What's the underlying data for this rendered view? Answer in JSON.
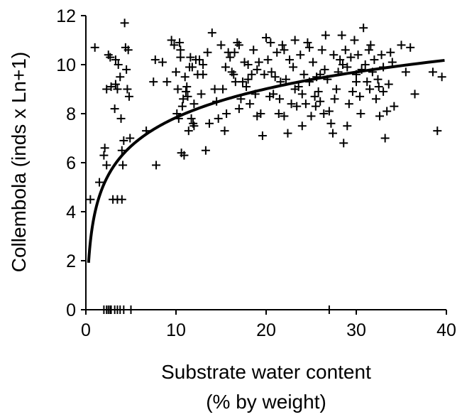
{
  "chart_data": {
    "type": "scatter",
    "title": "",
    "xlabel_lines": [
      "Substrate water content",
      "(% by weight)"
    ],
    "ylabel": "Collembola (inds x Ln+1)",
    "xlim": [
      0,
      40
    ],
    "ylim": [
      0,
      12
    ],
    "xticks": [
      0,
      10,
      20,
      30,
      40
    ],
    "yticks": [
      0,
      2,
      4,
      6,
      8,
      10,
      12
    ],
    "grid": false,
    "legend": "none",
    "marker": "plus",
    "color": "#000000",
    "points": [
      [
        0.5,
        4.5
      ],
      [
        1.0,
        10.7
      ],
      [
        1.5,
        5.2
      ],
      [
        2.0,
        6.3
      ],
      [
        2.1,
        6.6
      ],
      [
        2.3,
        5.9
      ],
      [
        2.5,
        10.4
      ],
      [
        2.7,
        10.3
      ],
      [
        3.0,
        4.5
      ],
      [
        3.3,
        10.2
      ],
      [
        3.5,
        9.0
      ],
      [
        3.6,
        10.0
      ],
      [
        3.8,
        9.5
      ],
      [
        3.9,
        7.8
      ],
      [
        4.0,
        6.5
      ],
      [
        4.1,
        5.9
      ],
      [
        4.2,
        6.9
      ],
      [
        4.3,
        11.7
      ],
      [
        4.4,
        10.7
      ],
      [
        4.5,
        9.8
      ],
      [
        4.6,
        9.0
      ],
      [
        4.7,
        10.6
      ],
      [
        4.8,
        8.7
      ],
      [
        4.9,
        7.0
      ],
      [
        3.5,
        4.5
      ],
      [
        4.0,
        4.5
      ],
      [
        2.3,
        9.0
      ],
      [
        3.2,
        8.2
      ],
      [
        3.3,
        9.2
      ],
      [
        2.8,
        9.1
      ],
      [
        6.7,
        7.3
      ],
      [
        7.5,
        9.3
      ],
      [
        7.7,
        10.2
      ],
      [
        7.8,
        5.9
      ],
      [
        8.5,
        10.1
      ],
      [
        9.0,
        9.3
      ],
      [
        9.5,
        11.0
      ],
      [
        9.8,
        10.8
      ],
      [
        10.0,
        9.7
      ],
      [
        10.1,
        8.0
      ],
      [
        10.2,
        9.0
      ],
      [
        10.3,
        7.8
      ],
      [
        10.4,
        10.9
      ],
      [
        10.5,
        10.6
      ],
      [
        10.6,
        6.4
      ],
      [
        10.7,
        8.3
      ],
      [
        10.8,
        8.6
      ],
      [
        10.9,
        6.3
      ],
      [
        11.0,
        9.5
      ],
      [
        11.1,
        8.9
      ],
      [
        11.2,
        9.1
      ],
      [
        11.3,
        8.7
      ],
      [
        11.4,
        7.3
      ],
      [
        11.5,
        9.9
      ],
      [
        11.6,
        10.3
      ],
      [
        11.7,
        7.8
      ],
      [
        11.8,
        9.9
      ],
      [
        11.9,
        7.6
      ],
      [
        12.0,
        7.5
      ],
      [
        12.2,
        10.2
      ],
      [
        12.4,
        9.6
      ],
      [
        12.6,
        10.2
      ],
      [
        12.8,
        8.8
      ],
      [
        13.0,
        10.0
      ],
      [
        13.3,
        6.5
      ],
      [
        13.5,
        10.5
      ],
      [
        13.7,
        7.6
      ],
      [
        14.0,
        11.3
      ],
      [
        14.3,
        9.0
      ],
      [
        14.5,
        8.5
      ],
      [
        14.7,
        7.8
      ],
      [
        15.0,
        10.8
      ],
      [
        15.2,
        9.0
      ],
      [
        15.4,
        7.3
      ],
      [
        15.6,
        8.0
      ],
      [
        15.8,
        10.5
      ],
      [
        16.0,
        10.3
      ],
      [
        16.2,
        9.7
      ],
      [
        16.4,
        9.6
      ],
      [
        16.6,
        9.3
      ],
      [
        16.8,
        10.9
      ],
      [
        17.0,
        8.2
      ],
      [
        17.2,
        8.6
      ],
      [
        17.4,
        9.3
      ],
      [
        17.6,
        10.1
      ],
      [
        17.8,
        9.1
      ],
      [
        18.0,
        10.0
      ],
      [
        18.2,
        8.4
      ],
      [
        18.4,
        9.6
      ],
      [
        18.6,
        10.6
      ],
      [
        18.8,
        8.8
      ],
      [
        19.0,
        9.8
      ],
      [
        19.2,
        10.1
      ],
      [
        19.4,
        8.0
      ],
      [
        19.6,
        7.1
      ],
      [
        19.8,
        9.6
      ],
      [
        20.0,
        11.1
      ],
      [
        20.2,
        10.2
      ],
      [
        20.4,
        8.7
      ],
      [
        20.6,
        9.7
      ],
      [
        20.8,
        8.8
      ],
      [
        21.0,
        9.5
      ],
      [
        21.2,
        10.5
      ],
      [
        21.4,
        8.0
      ],
      [
        21.6,
        9.3
      ],
      [
        21.8,
        10.8
      ],
      [
        22.0,
        7.9
      ],
      [
        22.2,
        9.4
      ],
      [
        22.4,
        7.2
      ],
      [
        22.6,
        10.2
      ],
      [
        22.8,
        8.4
      ],
      [
        23.0,
        9.9
      ],
      [
        23.2,
        11.0
      ],
      [
        23.4,
        8.3
      ],
      [
        23.6,
        9.1
      ],
      [
        23.8,
        10.4
      ],
      [
        24.0,
        8.8
      ],
      [
        24.2,
        9.6
      ],
      [
        24.4,
        8.4
      ],
      [
        24.6,
        10.9
      ],
      [
        24.8,
        9.3
      ],
      [
        25.0,
        7.9
      ],
      [
        25.2,
        10.1
      ],
      [
        25.4,
        8.7
      ],
      [
        25.6,
        9.5
      ],
      [
        25.8,
        8.9
      ],
      [
        26.0,
        9.6
      ],
      [
        26.2,
        10.6
      ],
      [
        26.4,
        8.0
      ],
      [
        26.6,
        11.2
      ],
      [
        26.8,
        9.4
      ],
      [
        27.0,
        8.1
      ],
      [
        27.2,
        7.6
      ],
      [
        27.4,
        7.2
      ],
      [
        27.6,
        8.6
      ],
      [
        27.8,
        9.0
      ],
      [
        28.0,
        9.7
      ],
      [
        28.2,
        10.2
      ],
      [
        28.4,
        11.2
      ],
      [
        28.6,
        6.8
      ],
      [
        28.8,
        10.6
      ],
      [
        29.0,
        9.9
      ],
      [
        29.2,
        8.4
      ],
      [
        29.4,
        10.3
      ],
      [
        29.6,
        8.9
      ],
      [
        29.8,
        11.0
      ],
      [
        30.0,
        9.3
      ],
      [
        30.2,
        10.4
      ],
      [
        30.4,
        8.7
      ],
      [
        30.6,
        9.8
      ],
      [
        30.8,
        11.5
      ],
      [
        31.0,
        10.0
      ],
      [
        31.2,
        9.3
      ],
      [
        31.4,
        10.6
      ],
      [
        31.6,
        10.8
      ],
      [
        31.8,
        9.7
      ],
      [
        32.0,
        10.2
      ],
      [
        32.2,
        8.6
      ],
      [
        32.4,
        9.4
      ],
      [
        32.6,
        7.9
      ],
      [
        32.8,
        10.4
      ],
      [
        33.0,
        8.9
      ],
      [
        33.2,
        7.0
      ],
      [
        33.4,
        8.1
      ],
      [
        33.6,
        9.2
      ],
      [
        33.8,
        10.5
      ],
      [
        34.0,
        10.1
      ],
      [
        34.2,
        8.3
      ],
      [
        35.0,
        10.8
      ],
      [
        35.5,
        9.7
      ],
      [
        36.0,
        10.7
      ],
      [
        36.5,
        8.8
      ],
      [
        38.5,
        9.7
      ],
      [
        39.0,
        7.3
      ],
      [
        39.5,
        9.5
      ],
      [
        31.5,
        9.0
      ],
      [
        29.0,
        7.5
      ],
      [
        24.0,
        7.5
      ],
      [
        30.5,
        8.0
      ],
      [
        26.5,
        9.8
      ],
      [
        23.2,
        9.0
      ],
      [
        20.5,
        10.9
      ],
      [
        27.5,
        10.4
      ],
      [
        16.5,
        10.5
      ],
      [
        13.0,
        9.6
      ],
      [
        12.0,
        8.4
      ],
      [
        10.5,
        10.3
      ],
      [
        22.0,
        10.6
      ],
      [
        28.5,
        10.0
      ],
      [
        33.0,
        9.9
      ],
      [
        25.5,
        8.3
      ],
      [
        19.0,
        7.9
      ],
      [
        15.5,
        9.9
      ],
      [
        21.5,
        8.6
      ],
      [
        18.0,
        9.4
      ],
      [
        26.0,
        8.5
      ],
      [
        30.0,
        9.6
      ],
      [
        32.5,
        9.1
      ],
      [
        24.8,
        10.7
      ],
      [
        17.0,
        10.8
      ],
      [
        2.0,
        0
      ],
      [
        2.3,
        0
      ],
      [
        2.5,
        0
      ],
      [
        2.7,
        0
      ],
      [
        2.8,
        0
      ],
      [
        3.2,
        0
      ],
      [
        3.5,
        0
      ],
      [
        3.8,
        0
      ],
      [
        4.2,
        0
      ],
      [
        5.0,
        0
      ],
      [
        27.0,
        0
      ]
    ],
    "fit_curve": {
      "type": "logarithmic",
      "intercept": 3.95,
      "slope": 1.69,
      "x_range": [
        0.3,
        39.8
      ]
    }
  }
}
